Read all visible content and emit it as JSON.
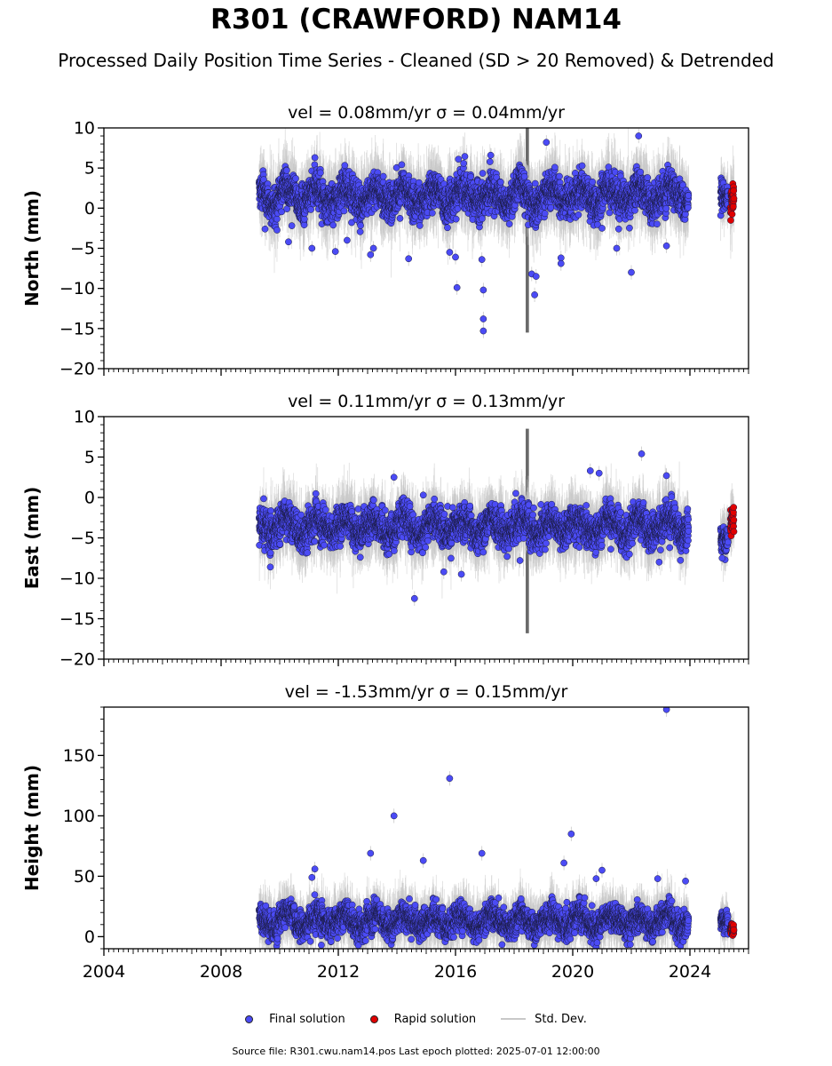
{
  "title": "R301 (CRAWFORD) NAM14",
  "subtitle": "Processed Daily Position Time Series - Cleaned (SD > 20 Removed) & Detrended",
  "legend": {
    "final": "Final solution",
    "rapid": "Rapid solution",
    "stddev": "Std. Dev."
  },
  "source": "Source file: R301.cwu.nam14.pos  Last epoch plotted: 2025-07-01 12:00:00",
  "colors": {
    "final": "#4b4bf5",
    "rapid": "#e00000",
    "stddev": "#c8c8c8",
    "dark_band": "#555555"
  },
  "chart_data": [
    {
      "type": "scatter",
      "title": "vel = 0.08mm/yr   σ = 0.04mm/yr",
      "ylabel": "North (mm)",
      "xlim": [
        2004,
        2026
      ],
      "ylim": [
        -20,
        10
      ],
      "yticks": [
        10,
        5,
        0,
        -5,
        -10,
        -15,
        -20
      ],
      "yticklabels": [
        "10",
        "5",
        "0",
        "−5",
        "−10",
        "−15",
        "−20"
      ],
      "xticklabels_visible": false,
      "series": [
        {
          "name": "Final solution",
          "x_start": 2009.3,
          "x_end": 2023.95,
          "baseline": 1.5,
          "spread": 1.6,
          "seasonal": 1.0,
          "trend": 0.0,
          "outliers": [
            [
              2009.5,
              -2.6
            ],
            [
              2010.3,
              -4.2
            ],
            [
              2011.1,
              -5.0
            ],
            [
              2011.9,
              -5.4
            ],
            [
              2012.3,
              -4.0
            ],
            [
              2013.1,
              -5.8
            ],
            [
              2013.2,
              -5.0
            ],
            [
              2014.4,
              -6.3
            ],
            [
              2015.8,
              -5.5
            ],
            [
              2016.0,
              -6.1
            ],
            [
              2016.05,
              -9.9
            ],
            [
              2016.9,
              -6.4
            ],
            [
              2016.95,
              -10.2
            ],
            [
              2016.95,
              -13.8
            ],
            [
              2016.95,
              -15.3
            ],
            [
              2018.6,
              -8.2
            ],
            [
              2018.7,
              -10.8
            ],
            [
              2018.75,
              -8.5
            ],
            [
              2019.6,
              -6.2
            ],
            [
              2019.6,
              -6.9
            ],
            [
              2021.0,
              -2.5
            ],
            [
              2021.5,
              -5.0
            ],
            [
              2022.0,
              -8.0
            ],
            [
              2023.2,
              -4.7
            ],
            [
              2022.25,
              9.0
            ],
            [
              2019.1,
              8.2
            ],
            [
              2017.2,
              6.6
            ],
            [
              2016.1,
              6.1
            ],
            [
              2011.2,
              6.3
            ]
          ]
        },
        {
          "name": "Final solution (2025)",
          "x_start": 2025.05,
          "x_end": 2025.3,
          "baseline": 1.6,
          "spread": 1.3,
          "seasonal": 0.0,
          "trend": 0.0,
          "outliers": []
        },
        {
          "name": "Rapid solution",
          "x_start": 2025.38,
          "x_end": 2025.5,
          "baseline": 0.8,
          "spread": 1.6,
          "seasonal": 0.0,
          "trend": 0.0,
          "outliers": []
        }
      ],
      "dark_band_x": 2018.45,
      "dark_band_range": [
        -15.5,
        10
      ]
    },
    {
      "type": "scatter",
      "title": "vel = 0.11mm/yr   σ = 0.13mm/yr",
      "ylabel": "East (mm)",
      "xlim": [
        2004,
        2026
      ],
      "ylim": [
        -20,
        10
      ],
      "yticks": [
        10,
        5,
        0,
        -5,
        -10,
        -15,
        -20
      ],
      "yticklabels": [
        "10",
        "5",
        "0",
        "−5",
        "−10",
        "−15",
        "−20"
      ],
      "xticklabels_visible": false,
      "series": [
        {
          "name": "Final solution",
          "x_start": 2009.3,
          "x_end": 2023.95,
          "baseline": -3.6,
          "spread": 1.5,
          "seasonal": 0.9,
          "trend": 0.0,
          "outliers": [
            [
              2013.9,
              2.5
            ],
            [
              2014.9,
              0.3
            ],
            [
              2014.6,
              -12.5
            ],
            [
              2015.6,
              -9.2
            ],
            [
              2016.2,
              -9.5
            ],
            [
              2018.2,
              -7.8
            ],
            [
              2020.6,
              3.3
            ],
            [
              2020.9,
              3.0
            ],
            [
              2022.35,
              5.4
            ],
            [
              2023.2,
              2.7
            ],
            [
              2022.95,
              -8.0
            ],
            [
              2021.3,
              -6.4
            ]
          ]
        },
        {
          "name": "Final solution (2025)",
          "x_start": 2025.05,
          "x_end": 2025.3,
          "baseline": -5.2,
          "spread": 1.2,
          "seasonal": 0.0,
          "trend": 0.0,
          "outliers": [
            [
              2025.2,
              -7.7
            ],
            [
              2025.1,
              -7.5
            ]
          ]
        },
        {
          "name": "Rapid solution",
          "x_start": 2025.38,
          "x_end": 2025.5,
          "baseline": -3.2,
          "spread": 1.2,
          "seasonal": 0.0,
          "trend": 0.0,
          "outliers": []
        }
      ],
      "dark_band_x": 2018.45,
      "dark_band_range": [
        -16.8,
        8.5
      ]
    },
    {
      "type": "scatter",
      "title": "vel = -1.53mm/yr   σ = 0.15mm/yr",
      "ylabel": "Height (mm)",
      "xlabel": "",
      "xlim": [
        2004,
        2026
      ],
      "ylim": [
        -10,
        190
      ],
      "yticks": [
        150,
        100,
        50,
        0
      ],
      "yticklabels": [
        "150",
        "100",
        "50",
        "0"
      ],
      "xticks": [
        2004,
        2008,
        2012,
        2016,
        2020,
        2024
      ],
      "xticklabels": [
        "2004",
        "2008",
        "2012",
        "2016",
        "2020",
        "2024"
      ],
      "xticklabels_visible": true,
      "series": [
        {
          "name": "Final solution",
          "x_start": 2009.3,
          "x_end": 2023.95,
          "baseline": 13,
          "spread": 8,
          "seasonal": 5,
          "trend": 0.0,
          "outliers": [
            [
              2013.9,
              100
            ],
            [
              2015.8,
              131
            ],
            [
              2016.9,
              69
            ],
            [
              2019.95,
              85
            ],
            [
              2023.2,
              188
            ],
            [
              2014.9,
              63
            ],
            [
              2013.1,
              69
            ],
            [
              2011.2,
              56
            ],
            [
              2011.1,
              49
            ],
            [
              2019.7,
              61
            ],
            [
              2021.0,
              55
            ],
            [
              2020.8,
              48
            ],
            [
              2022.9,
              48
            ],
            [
              2023.85,
              46
            ]
          ]
        },
        {
          "name": "Final solution (2025)",
          "x_start": 2025.05,
          "x_end": 2025.3,
          "baseline": 12,
          "spread": 6,
          "seasonal": 0.0,
          "trend": 0.0,
          "outliers": []
        },
        {
          "name": "Rapid solution",
          "x_start": 2025.38,
          "x_end": 2025.5,
          "baseline": 6,
          "spread": 4,
          "seasonal": 0.0,
          "trend": 0.0,
          "outliers": []
        }
      ]
    }
  ]
}
